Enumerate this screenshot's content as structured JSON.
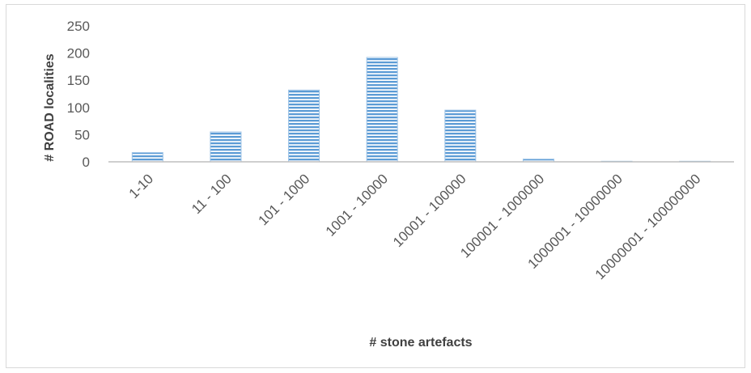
{
  "chart_data": {
    "type": "bar",
    "title": "",
    "xlabel": "# stone artefacts",
    "ylabel": "# ROAD localities",
    "categories": [
      "1-10",
      "11 - 100",
      "101 - 1000",
      "1001 - 10000",
      "10001 - 100000",
      "100001 - 1000000",
      "1000001 - 10000000",
      "10000001 - 100000000"
    ],
    "values": [
      17,
      55,
      132,
      192,
      95,
      5,
      1,
      1
    ],
    "ylim": [
      0,
      250
    ],
    "yticks": [
      0,
      50,
      100,
      150,
      200,
      250
    ],
    "grid": false,
    "legend": "none",
    "colors": {
      "bar_fill": "#9dc3e6",
      "bar_stripe": "#5b9bd5",
      "axis": "#bfbfbf"
    }
  }
}
